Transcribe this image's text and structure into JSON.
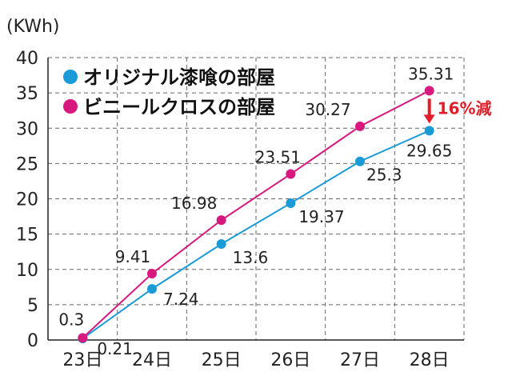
{
  "chart_data": {
    "type": "line",
    "ylabel": "(KWh)",
    "categories": [
      "23日",
      "24日",
      "25日",
      "26日",
      "27日",
      "28日"
    ],
    "yticks": [
      0,
      5,
      10,
      15,
      20,
      25,
      30,
      35,
      40
    ],
    "ylim": [
      0,
      40
    ],
    "grid": true,
    "legend_position": "top-left",
    "series": [
      {
        "name": "オリジナル漆喰の部屋",
        "color": "#1a9ad7",
        "values": [
          0.21,
          7.24,
          13.6,
          19.37,
          25.3,
          29.65
        ]
      },
      {
        "name": "ビニールクロスの部屋",
        "color": "#d6187f",
        "values": [
          0.3,
          9.41,
          16.98,
          23.51,
          30.27,
          35.31
        ]
      }
    ],
    "annotation": {
      "text": "16%減",
      "color": "#e01e2b"
    }
  }
}
